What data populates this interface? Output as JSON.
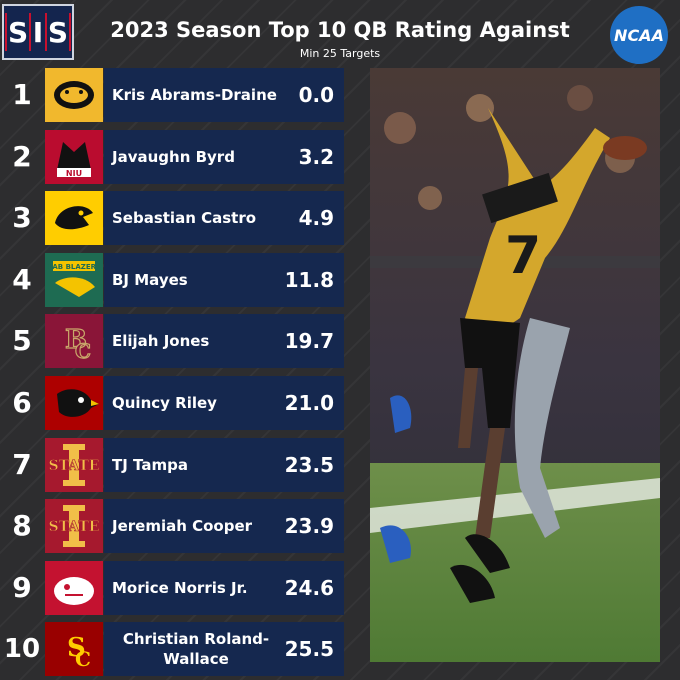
{
  "header": {
    "brand_letters": [
      "S",
      "I",
      "S"
    ],
    "title": "2023 Season Top 10 QB Rating Against",
    "subtitle": "Min 25 Targets",
    "ncaa_logo_text": "NCAA"
  },
  "colors": {
    "background": "#2d2d2f",
    "bar": "#15284f",
    "text": "#ffffff"
  },
  "chart_data": {
    "type": "table",
    "title": "2023 Season Top 10 QB Rating Against",
    "subtitle": "Min 25 Targets",
    "rows": [
      {
        "rank": "1",
        "name": "Kris Abrams-Draine",
        "value": "0.0",
        "team_logo": "missouri-tiger-logo"
      },
      {
        "rank": "2",
        "name": "Javaughn Byrd",
        "value": "3.2",
        "team_logo": "niu-huskies-logo"
      },
      {
        "rank": "3",
        "name": "Sebastian Castro",
        "value": "4.9",
        "team_logo": "iowa-hawkeyes-logo"
      },
      {
        "rank": "4",
        "name": "BJ Mayes",
        "value": "11.8",
        "team_logo": "uab-blazers-logo"
      },
      {
        "rank": "5",
        "name": "Elijah Jones",
        "value": "19.7",
        "team_logo": "boston-college-logo"
      },
      {
        "rank": "6",
        "name": "Quincy Riley",
        "value": "21.0",
        "team_logo": "louisville-cardinal-logo"
      },
      {
        "rank": "7",
        "name": "TJ Tampa",
        "value": "23.5",
        "team_logo": "iowa-state-logo"
      },
      {
        "rank": "8",
        "name": "Jeremiah Cooper",
        "value": "23.9",
        "team_logo": "iowa-state-logo"
      },
      {
        "rank": "9",
        "name": "Morice Norris Jr.",
        "value": "24.6",
        "team_logo": "fresno-state-logo"
      },
      {
        "rank": "10",
        "name": "Christian Roland-Wallace",
        "value": "25.5",
        "team_logo": "usc-trojans-logo"
      }
    ]
  },
  "photo": {
    "jersey_number": "7"
  }
}
